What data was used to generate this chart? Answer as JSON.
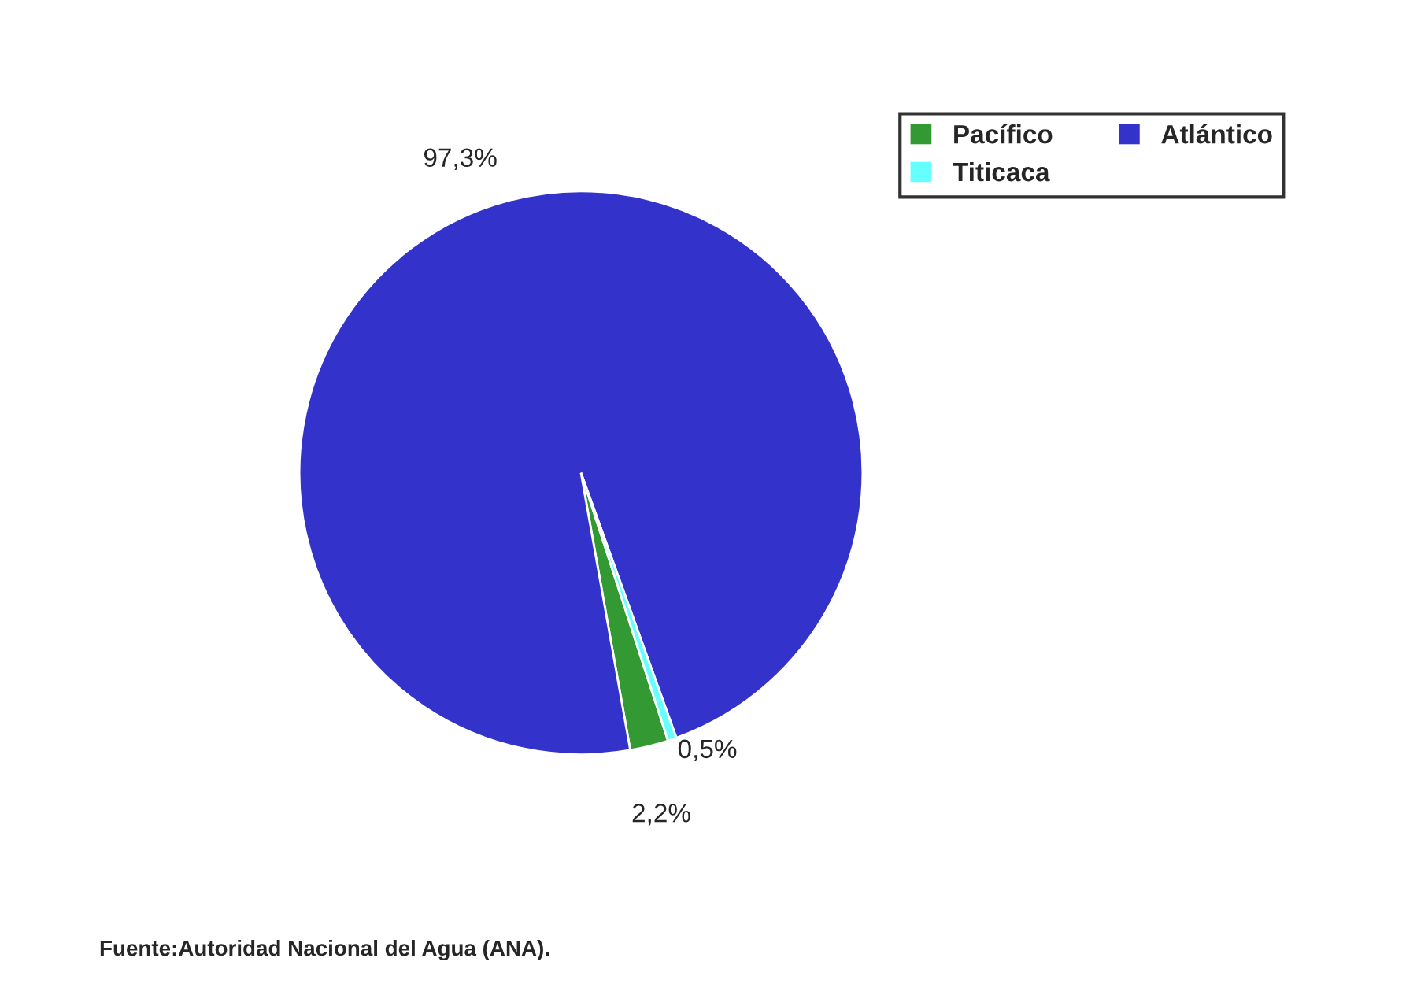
{
  "chart_data": {
    "type": "pie",
    "categories": [
      "Pacífico",
      "Atlántico",
      "Titicaca"
    ],
    "values": [
      2.2,
      97.3,
      0.5
    ],
    "value_labels": [
      "2,2%",
      "97,3%",
      "0,5%"
    ],
    "colors": [
      "#339933",
      "#3333cc",
      "#66ffff"
    ],
    "legend": "top right",
    "annotations": [
      "Fuente:Autoridad Nacional del Agua (ANA)."
    ]
  }
}
